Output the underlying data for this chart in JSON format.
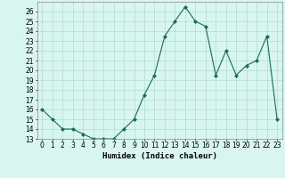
{
  "x": [
    0,
    1,
    2,
    3,
    4,
    5,
    6,
    7,
    8,
    9,
    10,
    11,
    12,
    13,
    14,
    15,
    16,
    17,
    18,
    19,
    20,
    21,
    22,
    23
  ],
  "y": [
    16,
    15,
    14,
    14,
    13.5,
    13,
    13,
    13,
    14,
    15,
    17.5,
    19.5,
    23.5,
    25,
    26.5,
    25,
    24.5,
    19.5,
    22,
    19.5,
    20.5,
    21,
    23.5,
    15
  ],
  "line_color": "#1a6b5a",
  "marker": "D",
  "marker_size": 2,
  "bg_color": "#d8f5f0",
  "grid_color": "#b0ddd8",
  "xlabel": "Humidex (Indice chaleur)",
  "xlim": [
    -0.5,
    23.5
  ],
  "ylim": [
    13,
    27
  ],
  "yticks": [
    13,
    14,
    15,
    16,
    17,
    18,
    19,
    20,
    21,
    22,
    23,
    24,
    25,
    26
  ],
  "xticks": [
    0,
    1,
    2,
    3,
    4,
    5,
    6,
    7,
    8,
    9,
    10,
    11,
    12,
    13,
    14,
    15,
    16,
    17,
    18,
    19,
    20,
    21,
    22,
    23
  ],
  "xlabel_fontsize": 6.5,
  "tick_fontsize": 5.5
}
